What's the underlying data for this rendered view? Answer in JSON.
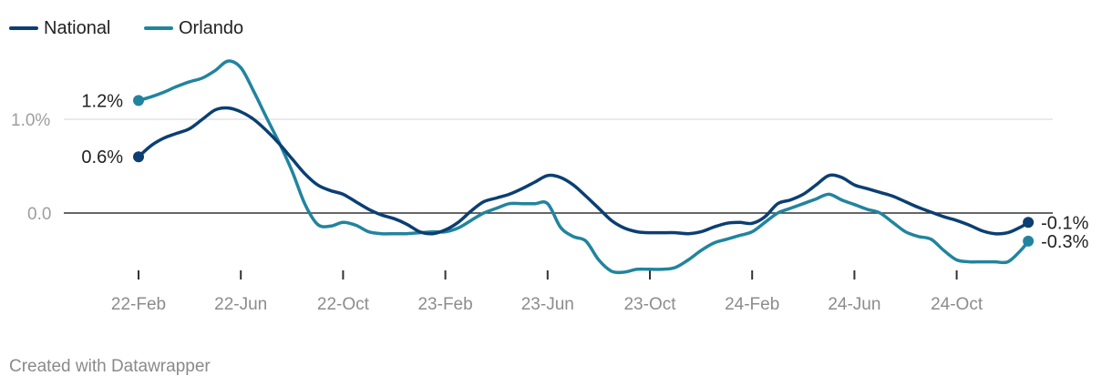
{
  "chart_data": {
    "type": "line",
    "title": "",
    "xlabel": "",
    "ylabel": "",
    "ylim": [
      -0.6,
      1.6
    ],
    "y_ticks": [
      {
        "value": 0,
        "label": "0.0"
      },
      {
        "value": 1.0,
        "label": "1.0%"
      }
    ],
    "x_ticks": [
      {
        "x": 0,
        "label": "22-Feb"
      },
      {
        "x": 4,
        "label": "22-Jun"
      },
      {
        "x": 8,
        "label": "22-Oct"
      },
      {
        "x": 12,
        "label": "23-Feb"
      },
      {
        "x": 16,
        "label": "23-Jun"
      },
      {
        "x": 20,
        "label": "23-Oct"
      },
      {
        "x": 24,
        "label": "24-Feb"
      },
      {
        "x": 28,
        "label": "24-Jun"
      },
      {
        "x": 32,
        "label": "24-Oct"
      }
    ],
    "x": [
      0,
      0.5,
      1,
      1.5,
      2,
      2.5,
      3,
      3.5,
      4,
      4.5,
      5,
      5.5,
      6,
      6.5,
      7,
      7.5,
      8,
      8.5,
      9,
      9.5,
      10,
      10.5,
      11,
      11.5,
      12,
      12.5,
      13,
      13.5,
      14,
      14.5,
      15,
      15.5,
      16,
      16.5,
      17,
      17.5,
      18,
      18.5,
      19,
      19.5,
      20,
      20.5,
      21,
      21.5,
      22,
      22.5,
      23,
      23.5,
      24,
      24.5,
      25,
      25.5,
      26,
      26.5,
      27,
      27.5,
      28,
      28.5,
      29,
      29.5,
      30,
      30.5,
      31,
      31.5,
      32,
      32.5,
      33,
      33.5,
      34,
      34.5,
      34.8
    ],
    "series": [
      {
        "name": "National",
        "color": "#0b3f73",
        "values": [
          0.6,
          0.72,
          0.8,
          0.85,
          0.9,
          1.0,
          1.1,
          1.12,
          1.08,
          1.0,
          0.88,
          0.74,
          0.58,
          0.42,
          0.3,
          0.24,
          0.2,
          0.12,
          0.04,
          -0.02,
          -0.06,
          -0.12,
          -0.2,
          -0.22,
          -0.18,
          -0.1,
          0.02,
          0.12,
          0.16,
          0.2,
          0.26,
          0.33,
          0.4,
          0.38,
          0.3,
          0.18,
          0.05,
          -0.08,
          -0.16,
          -0.2,
          -0.21,
          -0.21,
          -0.21,
          -0.22,
          -0.2,
          -0.15,
          -0.11,
          -0.1,
          -0.11,
          -0.04,
          0.1,
          0.14,
          0.2,
          0.3,
          0.4,
          0.38,
          0.3,
          0.26,
          0.22,
          0.18,
          0.12,
          0.06,
          0.01,
          -0.04,
          -0.08,
          -0.13,
          -0.19,
          -0.22,
          -0.21,
          -0.15,
          -0.1
        ]
      },
      {
        "name": "Orlando",
        "color": "#21849f",
        "values": [
          1.2,
          1.24,
          1.29,
          1.35,
          1.4,
          1.44,
          1.52,
          1.62,
          1.55,
          1.3,
          1.02,
          0.75,
          0.45,
          0.1,
          -0.12,
          -0.14,
          -0.1,
          -0.13,
          -0.2,
          -0.22,
          -0.22,
          -0.22,
          -0.21,
          -0.2,
          -0.2,
          -0.16,
          -0.08,
          0.0,
          0.05,
          0.1,
          0.1,
          0.1,
          0.1,
          -0.15,
          -0.25,
          -0.3,
          -0.5,
          -0.62,
          -0.63,
          -0.6,
          -0.6,
          -0.6,
          -0.58,
          -0.5,
          -0.4,
          -0.32,
          -0.28,
          -0.24,
          -0.2,
          -0.1,
          0.0,
          0.05,
          0.1,
          0.15,
          0.2,
          0.14,
          0.09,
          0.04,
          0.0,
          -0.1,
          -0.2,
          -0.25,
          -0.28,
          -0.4,
          -0.5,
          -0.52,
          -0.52,
          -0.52,
          -0.52,
          -0.4,
          -0.3
        ]
      }
    ],
    "start_labels": [
      {
        "series": "Orlando",
        "label": "1.2%"
      },
      {
        "series": "National",
        "label": "0.6%"
      }
    ],
    "end_labels": [
      {
        "series": "National",
        "label": "-0.1%"
      },
      {
        "series": "Orlando",
        "label": "-0.3%"
      }
    ],
    "legend": {
      "placement": "top-left",
      "entries": [
        "National",
        "Orlando"
      ]
    },
    "grid": true
  },
  "credit": "Created with Datawrapper"
}
